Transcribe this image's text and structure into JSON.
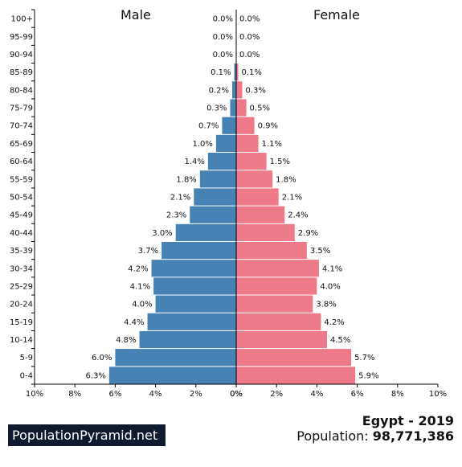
{
  "header": {
    "male_label": "Male",
    "female_label": "Female"
  },
  "footer": {
    "brand": "PopulationPyramid.net",
    "country_year": "Egypt - 2019",
    "population_label": "Population:",
    "population_value": "98,771,386"
  },
  "colors": {
    "male": "#4682b4",
    "female": "#ee7989"
  },
  "chart_data": {
    "type": "bar",
    "orientation": "horizontal-pyramid",
    "categories": [
      "100+",
      "95-99",
      "90-94",
      "85-89",
      "80-84",
      "75-79",
      "70-74",
      "65-69",
      "60-64",
      "55-59",
      "50-54",
      "45-49",
      "40-44",
      "35-39",
      "30-34",
      "25-29",
      "20-24",
      "15-19",
      "10-14",
      "5-9",
      "0-4"
    ],
    "series": [
      {
        "name": "Male",
        "values": [
          0.0,
          0.0,
          0.0,
          0.1,
          0.2,
          0.3,
          0.7,
          1.0,
          1.4,
          1.8,
          2.1,
          2.3,
          3.0,
          3.7,
          4.2,
          4.1,
          4.0,
          4.4,
          4.8,
          6.0,
          6.3
        ]
      },
      {
        "name": "Female",
        "values": [
          0.0,
          0.0,
          0.0,
          0.1,
          0.3,
          0.5,
          0.9,
          1.1,
          1.5,
          1.8,
          2.1,
          2.4,
          2.9,
          3.5,
          4.1,
          4.0,
          3.8,
          4.2,
          4.5,
          5.7,
          5.9
        ]
      }
    ],
    "xlim": [
      0,
      10
    ],
    "xticks": [
      "10%",
      "8%",
      "6%",
      "4%",
      "2%",
      "0%",
      "0%",
      "2%",
      "4%",
      "6%",
      "8%",
      "10%"
    ],
    "unit": "%",
    "grid": false
  }
}
